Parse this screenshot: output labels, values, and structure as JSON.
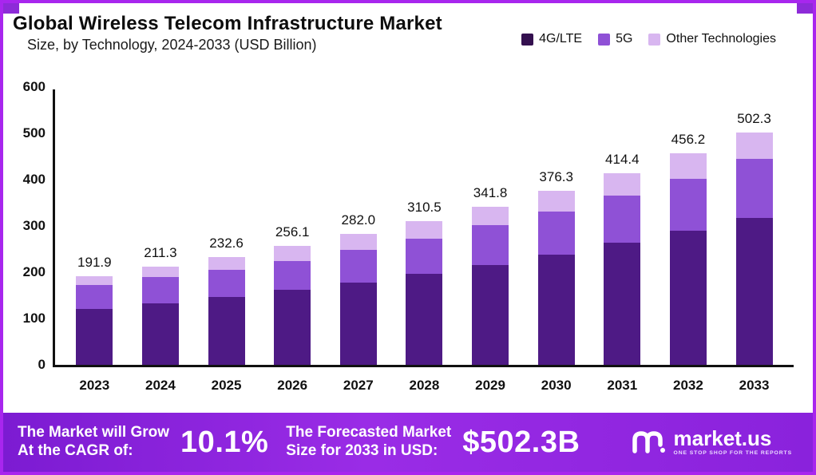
{
  "header": {
    "title": "Global Wireless Telecom Infrastructure Market",
    "subtitle": "Size, by Technology, 2024-2033 (USD Billion)"
  },
  "legend": [
    {
      "label": "4G/LTE",
      "color": "#34104f"
    },
    {
      "label": "5G",
      "color": "#8f51d6"
    },
    {
      "label": "Other Technologies",
      "color": "#d8b6f0"
    }
  ],
  "chart_data": {
    "type": "bar",
    "stacked": true,
    "title": "Global Wireless Telecom Infrastructure Market",
    "subtitle": "Size, by Technology, 2024-2033 (USD Billion)",
    "categories": [
      "2023",
      "2024",
      "2025",
      "2026",
      "2027",
      "2028",
      "2029",
      "2030",
      "2031",
      "2032",
      "2033"
    ],
    "series": [
      {
        "name": "4G/LTE",
        "color": "#4e1a85",
        "values": [
          120,
          133,
          147,
          162,
          178,
          196,
          216,
          238,
          263,
          290,
          318
        ]
      },
      {
        "name": "5G",
        "color": "#8f51d6",
        "values": [
          52,
          56,
          58,
          63,
          70,
          77,
          85,
          93,
          102,
          112,
          126
        ]
      },
      {
        "name": "Other Technologies",
        "color": "#d8b6f0",
        "values": [
          19.9,
          22.3,
          27.6,
          31.1,
          34.0,
          37.5,
          40.8,
          45.3,
          49.4,
          54.2,
          58.3
        ]
      }
    ],
    "totals": [
      191.9,
      211.3,
      232.6,
      256.1,
      282.0,
      310.5,
      341.8,
      376.3,
      414.4,
      456.2,
      502.3
    ],
    "ylim": [
      0,
      600
    ],
    "yticks": [
      0,
      100,
      200,
      300,
      400,
      500,
      600
    ],
    "ylabel": "USD Billion",
    "grid": false,
    "legend_position": "top-right"
  },
  "banner": {
    "cagr_label_line1": "The Market will Grow",
    "cagr_label_line2": "At the CAGR of:",
    "cagr_value": "10.1%",
    "forecast_label_line1": "The Forecasted Market",
    "forecast_label_line2": "Size for 2033 in USD:",
    "forecast_value": "$502.3B",
    "brand": "market.us",
    "brand_tagline": "One Stop Shop For The Reports"
  },
  "colors": {
    "frame_border": "#a826ee",
    "banner_gradient_start": "#7c1bd2",
    "banner_gradient_end": "#8a22dc",
    "axis": "#111111",
    "text": "#111111"
  }
}
